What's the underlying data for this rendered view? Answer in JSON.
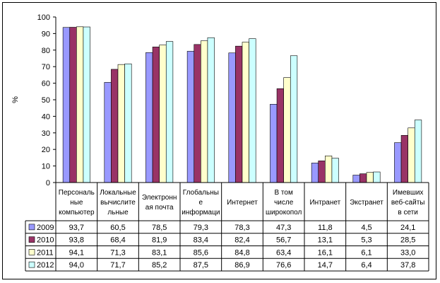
{
  "chart_data": {
    "type": "bar",
    "ylabel": "%",
    "ylim": [
      0,
      100
    ],
    "yticks": [
      0,
      10,
      20,
      30,
      40,
      50,
      60,
      70,
      80,
      90,
      100
    ],
    "grid": false,
    "legend_placement": "data table below plot",
    "categories": [
      [
        "Персональ",
        "ные",
        "компьютер"
      ],
      [
        "Локальные",
        "вычислите",
        "льные"
      ],
      [
        "Электронн",
        "ая почта"
      ],
      [
        "Глобальны",
        "е",
        "информаци"
      ],
      [
        "Интернет"
      ],
      [
        "В том",
        "числе",
        "широкопол"
      ],
      [
        "Интранет"
      ],
      [
        "Экстранет"
      ],
      [
        "Имевших",
        "веб-сайты",
        "в сети"
      ]
    ],
    "series": [
      {
        "name": "2009",
        "color": "#9999FF",
        "values": [
          93.7,
          60.5,
          78.5,
          79.3,
          78.3,
          47.3,
          11.8,
          4.5,
          24.1
        ],
        "labels": [
          "93,7",
          "60,5",
          "78,5",
          "79,3",
          "78,3",
          "47,3",
          "11,8",
          "4,5",
          "24,1"
        ]
      },
      {
        "name": "2010",
        "color": "#993366",
        "values": [
          93.8,
          68.4,
          81.9,
          83.4,
          82.4,
          56.7,
          13.1,
          5.3,
          28.5
        ],
        "labels": [
          "93,8",
          "68,4",
          "81,9",
          "83,4",
          "82,4",
          "56,7",
          "13,1",
          "5,3",
          "28,5"
        ]
      },
      {
        "name": "2011",
        "color": "#FFFFCC",
        "values": [
          94.1,
          71.3,
          83.1,
          85.6,
          84.8,
          63.4,
          16.1,
          6.1,
          33.0
        ],
        "labels": [
          "94,1",
          "71,3",
          "83,1",
          "85,6",
          "84,8",
          "63,4",
          "16,1",
          "6,1",
          "33,0"
        ]
      },
      {
        "name": "2012",
        "color": "#CCFFFF",
        "values": [
          94.0,
          71.7,
          85.2,
          87.5,
          86.9,
          76.6,
          14.7,
          6.4,
          37.8
        ],
        "labels": [
          "94,0",
          "71,7",
          "85,2",
          "87,5",
          "86,9",
          "76,6",
          "14,7",
          "6,4",
          "37,8"
        ]
      }
    ]
  }
}
